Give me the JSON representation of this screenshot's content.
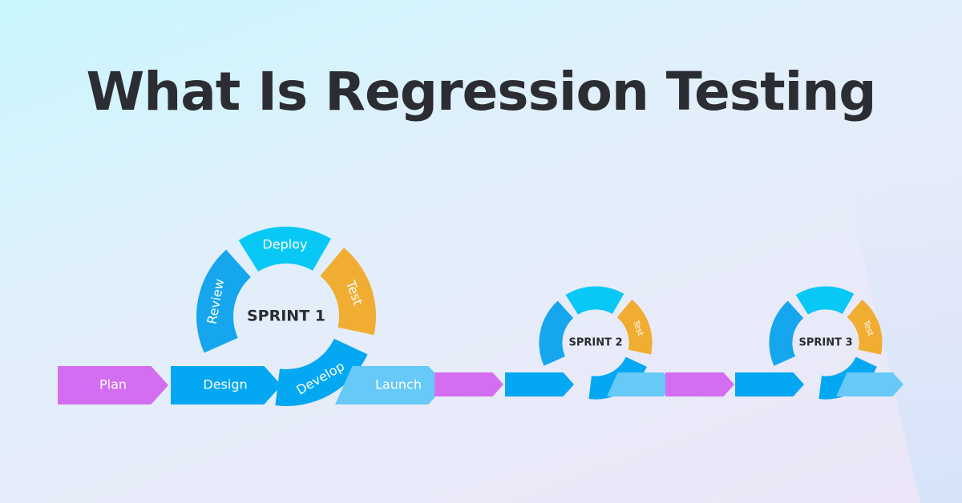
{
  "title": "What Is Regression Testing",
  "sprints": [
    {
      "label": "SPRINT 1",
      "segments": [
        "Deploy",
        "Test",
        "Develop",
        "Review"
      ]
    },
    {
      "label": "SPRINT 2",
      "segments": [
        "",
        "Test",
        "",
        ""
      ]
    },
    {
      "label": "SPRINT 3",
      "segments": [
        "",
        "Test",
        "",
        ""
      ]
    }
  ],
  "pipeline": [
    "Plan",
    "Design",
    "Launch"
  ],
  "colors": {
    "plan": "#d46ef0",
    "design": "#04a8f2",
    "launch": "#66c9f8",
    "deploy": "#08c8f5",
    "test": "#f0ad32",
    "review": "#16a6ee",
    "text": "#2b2d33"
  }
}
